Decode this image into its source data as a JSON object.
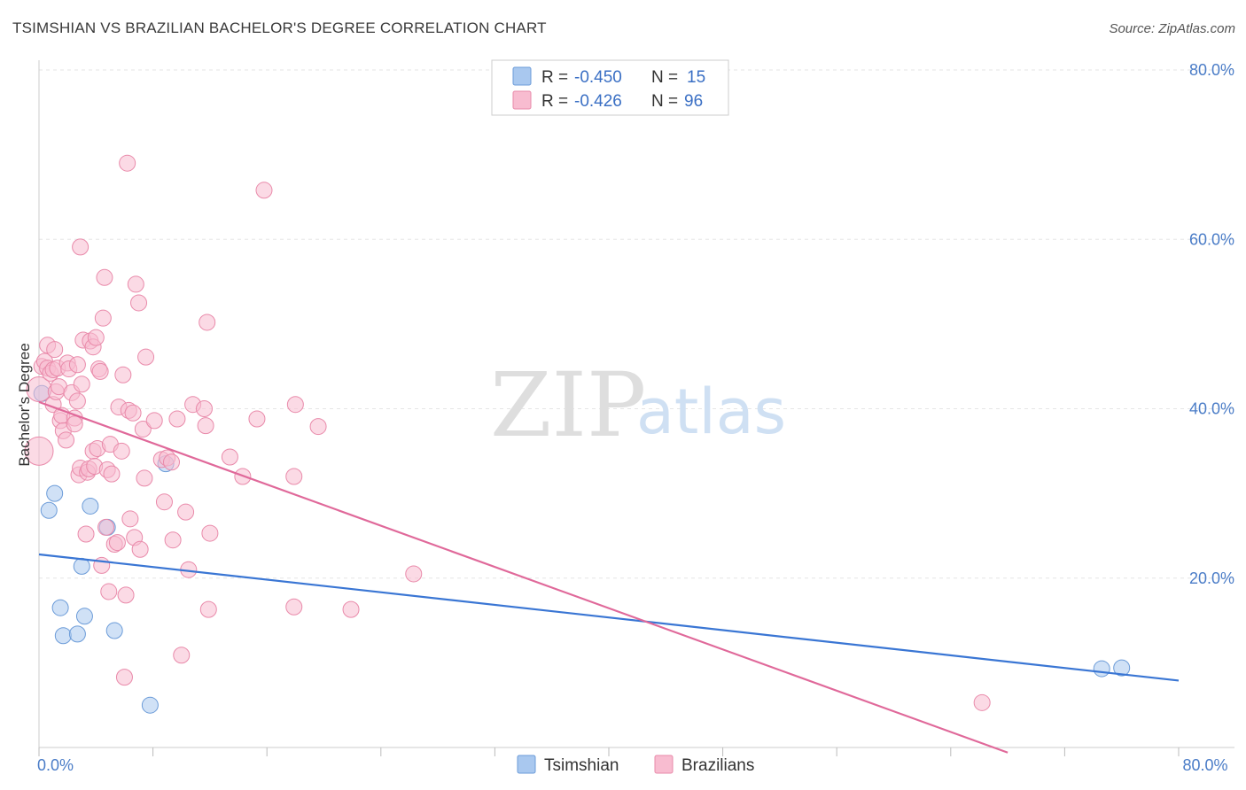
{
  "header": {
    "title": "TSIMSHIAN VS BRAZILIAN BACHELOR'S DEGREE CORRELATION CHART",
    "source": "Source: ZipAtlas.com"
  },
  "watermark": {
    "zip": "ZIP",
    "atlas": "atlas"
  },
  "legend": {
    "rows": [
      {
        "r_label": "R = ",
        "r_value": "-0.450",
        "n_label": "N = ",
        "n_value": "15",
        "color": "#a9c8ef",
        "stroke": "#6b9bd8"
      },
      {
        "r_label": "R = ",
        "r_value": "-0.426",
        "n_label": "N = ",
        "n_value": "96",
        "color": "#f8bcd0",
        "stroke": "#e98aaa"
      }
    ]
  },
  "chart_data": {
    "type": "scatter",
    "title": "TSIMSHIAN VS BRAZILIAN BACHELOR'S DEGREE CORRELATION CHART",
    "xlabel": "",
    "ylabel": "Bachelor's Degree",
    "xlim": [
      0,
      80
    ],
    "ylim": [
      0,
      80
    ],
    "x_tick_labels": [
      {
        "value": 0,
        "label": "0.0%"
      },
      {
        "value": 80,
        "label": "80.0%"
      }
    ],
    "x_minor_ticks": [
      8,
      16,
      24,
      32,
      40,
      48,
      56,
      64,
      72
    ],
    "y_ticks": [
      {
        "value": 20,
        "label": "20.0%"
      },
      {
        "value": 40,
        "label": "40.0%"
      },
      {
        "value": 60,
        "label": "60.0%"
      },
      {
        "value": 80,
        "label": "80.0%"
      }
    ],
    "grid": true,
    "legend_position": "top-center",
    "series": [
      {
        "name": "Tsimshian",
        "color": "#a9c8ef",
        "stroke": "#6b9bd8",
        "trend": {
          "x": [
            0,
            80
          ],
          "y": [
            22.8,
            7.9
          ],
          "color": "#3a76d4"
        },
        "points": [
          [
            0.2,
            41.8,
            9
          ],
          [
            0.7,
            28.0,
            9
          ],
          [
            1.1,
            30.0,
            9
          ],
          [
            1.5,
            16.5,
            9
          ],
          [
            1.7,
            13.2,
            9
          ],
          [
            2.7,
            13.4,
            9
          ],
          [
            3.0,
            21.4,
            9
          ],
          [
            3.2,
            15.5,
            9
          ],
          [
            3.6,
            28.5,
            9
          ],
          [
            4.8,
            26.0,
            9
          ],
          [
            5.3,
            13.8,
            9
          ],
          [
            7.8,
            5.0,
            9
          ],
          [
            8.9,
            33.5,
            9
          ],
          [
            74.6,
            9.3,
            9
          ],
          [
            76.0,
            9.4,
            9
          ]
        ]
      },
      {
        "name": "Brazilians",
        "color": "#f8bcd0",
        "stroke": "#e98aaa",
        "trend": {
          "x": [
            0,
            68
          ],
          "y": [
            40.8,
            -0.6
          ],
          "color": "#e0699a"
        },
        "points": [
          [
            0.0,
            35.0,
            16
          ],
          [
            0.0,
            42.3,
            14
          ],
          [
            0.2,
            45.0,
            9
          ],
          [
            0.4,
            45.6,
            9
          ],
          [
            0.6,
            47.5,
            9
          ],
          [
            0.6,
            44.8,
            9
          ],
          [
            0.8,
            44.2,
            9
          ],
          [
            1.0,
            44.6,
            9
          ],
          [
            1.0,
            40.5,
            9
          ],
          [
            1.1,
            47.0,
            9
          ],
          [
            1.2,
            42.0,
            9
          ],
          [
            1.3,
            44.8,
            9
          ],
          [
            1.4,
            42.6,
            9
          ],
          [
            1.5,
            38.6,
            9
          ],
          [
            1.6,
            39.2,
            9
          ],
          [
            1.7,
            37.4,
            9
          ],
          [
            1.9,
            36.3,
            9
          ],
          [
            2.0,
            45.4,
            9
          ],
          [
            2.1,
            44.7,
            9
          ],
          [
            2.3,
            41.9,
            9
          ],
          [
            2.5,
            38.9,
            9
          ],
          [
            2.5,
            38.2,
            9
          ],
          [
            2.7,
            45.2,
            9
          ],
          [
            2.7,
            40.9,
            9
          ],
          [
            2.8,
            32.2,
            9
          ],
          [
            2.9,
            33.0,
            9
          ],
          [
            2.9,
            59.1,
            9
          ],
          [
            3.0,
            42.9,
            9
          ],
          [
            3.1,
            48.1,
            9
          ],
          [
            3.3,
            25.2,
            9
          ],
          [
            3.4,
            32.5,
            9
          ],
          [
            3.5,
            32.9,
            9
          ],
          [
            3.6,
            48.0,
            9
          ],
          [
            3.8,
            47.3,
            9
          ],
          [
            3.8,
            35.0,
            9
          ],
          [
            3.9,
            33.2,
            9
          ],
          [
            4.0,
            48.4,
            9
          ],
          [
            4.1,
            35.3,
            9
          ],
          [
            4.2,
            44.7,
            9
          ],
          [
            4.3,
            44.4,
            9
          ],
          [
            4.4,
            21.5,
            9
          ],
          [
            4.5,
            50.7,
            9
          ],
          [
            4.6,
            55.5,
            9
          ],
          [
            4.7,
            26.0,
            9
          ],
          [
            4.8,
            32.8,
            9
          ],
          [
            4.9,
            18.4,
            9
          ],
          [
            5.0,
            35.8,
            9
          ],
          [
            5.1,
            32.3,
            9
          ],
          [
            5.3,
            24.0,
            9
          ],
          [
            5.5,
            24.2,
            9
          ],
          [
            5.6,
            40.2,
            9
          ],
          [
            5.8,
            35.0,
            9
          ],
          [
            5.9,
            44.0,
            9
          ],
          [
            6.0,
            8.3,
            9
          ],
          [
            6.1,
            18.0,
            9
          ],
          [
            6.2,
            69.0,
            9
          ],
          [
            6.3,
            39.8,
            9
          ],
          [
            6.4,
            27.0,
            9
          ],
          [
            6.6,
            39.5,
            9
          ],
          [
            6.7,
            24.8,
            9
          ],
          [
            6.8,
            54.7,
            9
          ],
          [
            7.0,
            52.5,
            9
          ],
          [
            7.1,
            23.4,
            9
          ],
          [
            7.3,
            37.6,
            9
          ],
          [
            7.4,
            31.8,
            9
          ],
          [
            7.5,
            46.1,
            9
          ],
          [
            8.1,
            38.6,
            9
          ],
          [
            8.6,
            34.0,
            9
          ],
          [
            8.8,
            29.0,
            9
          ],
          [
            9.0,
            34.2,
            9
          ],
          [
            9.3,
            33.7,
            9
          ],
          [
            9.4,
            24.5,
            9
          ],
          [
            9.7,
            38.8,
            9
          ],
          [
            10.0,
            10.9,
            9
          ],
          [
            10.3,
            27.8,
            9
          ],
          [
            10.5,
            21.0,
            9
          ],
          [
            10.8,
            40.5,
            9
          ],
          [
            11.6,
            40.0,
            9
          ],
          [
            11.7,
            38.0,
            9
          ],
          [
            11.8,
            50.2,
            9
          ],
          [
            11.9,
            16.3,
            9
          ],
          [
            12.0,
            25.3,
            9
          ],
          [
            13.4,
            34.3,
            9
          ],
          [
            14.3,
            32.0,
            9
          ],
          [
            15.3,
            38.8,
            9
          ],
          [
            15.8,
            65.8,
            9
          ],
          [
            17.9,
            16.6,
            9
          ],
          [
            17.9,
            32.0,
            9
          ],
          [
            18.0,
            40.5,
            9
          ],
          [
            19.6,
            37.9,
            9
          ],
          [
            21.9,
            16.3,
            9
          ],
          [
            26.3,
            20.5,
            9
          ],
          [
            66.2,
            5.3,
            9
          ]
        ]
      }
    ]
  },
  "bottom_legend": {
    "items": [
      {
        "label": "Tsimshian",
        "color": "#a9c8ef",
        "stroke": "#6b9bd8"
      },
      {
        "label": "Brazilians",
        "color": "#f8bcd0",
        "stroke": "#e98aaa"
      }
    ]
  }
}
